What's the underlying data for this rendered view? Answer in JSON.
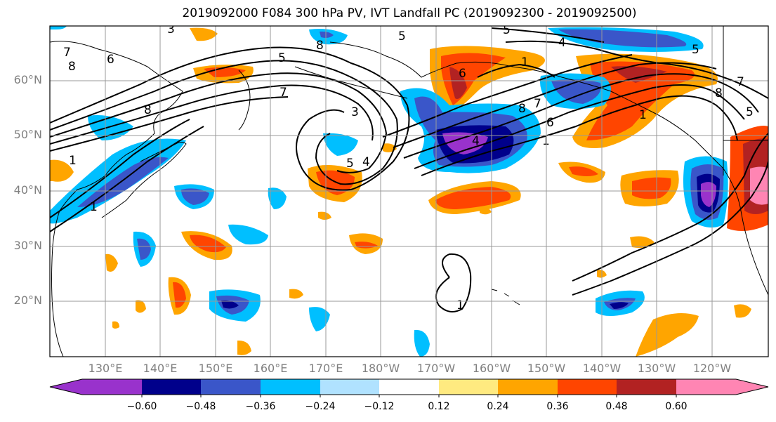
{
  "title": "2019092000 F084 300 hPa PV, IVT Landfall PC (2019092300 - 2019092500)",
  "map": {
    "lat_labels": [
      "60°N",
      "50°N",
      "40°N",
      "30°N",
      "20°N"
    ],
    "lon_labels": [
      "130°E",
      "140°E",
      "150°E",
      "160°E",
      "170°E",
      "180°W",
      "170°W",
      "160°W",
      "150°W",
      "140°W",
      "130°W",
      "120°W"
    ],
    "contour_labels": [
      "3",
      "5",
      "8",
      "4",
      "5",
      "1",
      "7",
      "8",
      "6",
      "5",
      "8",
      "1",
      "7",
      "3",
      "5",
      "4",
      "5",
      "1",
      "6",
      "8",
      "4",
      "7",
      "1",
      "6",
      "8",
      "7",
      "5",
      "1",
      "1"
    ]
  },
  "colorbar": {
    "tick_labels": [
      "−0.60",
      "−0.48",
      "−0.36",
      "−0.24",
      "−0.12",
      "0.12",
      "0.24",
      "0.36",
      "0.48",
      "0.60"
    ],
    "colors": [
      "#9932cc",
      "#00008b",
      "#3a56c9",
      "#00bfff",
      "#b0e2ff",
      "#ffffff",
      "#ffea80",
      "#ffa500",
      "#ff4500",
      "#b22222",
      "#ff85b3"
    ]
  }
}
